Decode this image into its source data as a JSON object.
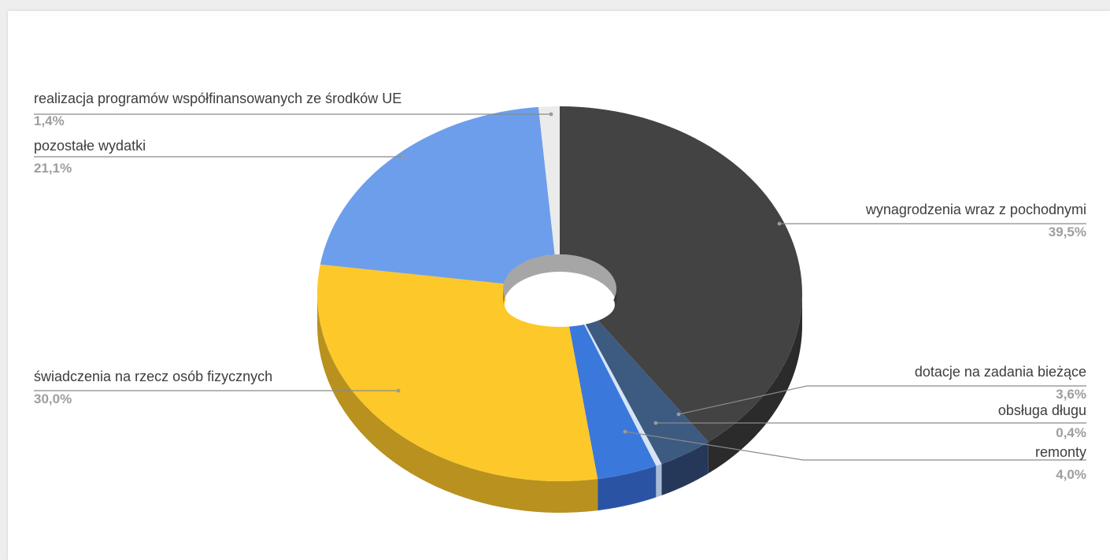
{
  "chart_data": {
    "type": "pie",
    "variant": "3d-donut",
    "slices": [
      {
        "label": "wynagrodzenia wraz z pochodnymi",
        "value": 39.5,
        "value_label": "39,5%",
        "color": "#434343",
        "side_color": "#2b2b2b"
      },
      {
        "label": "dotacje na zadania bieżące",
        "value": 3.6,
        "value_label": "3,6%",
        "color": "#3d5a80",
        "side_color": "#26385a"
      },
      {
        "label": "obsługa długu",
        "value": 0.4,
        "value_label": "0,4%",
        "color": "#d6e4f5",
        "side_color": "#a9bcd6"
      },
      {
        "label": "remonty",
        "value": 4.0,
        "value_label": "4,0%",
        "color": "#3b78db",
        "side_color": "#2a54a3"
      },
      {
        "label": "świadczenia na rzecz osób fizycznych",
        "value": 30.0,
        "value_label": "30,0%",
        "color": "#fdc829",
        "side_color": "#b8911f"
      },
      {
        "label": "pozostałe wydatki",
        "value": 21.1,
        "value_label": "21,1%",
        "color": "#6d9eeb",
        "side_color": "#4c72b0"
      },
      {
        "label": "realizacja programów współfinansowanych ze środków UE",
        "value": 1.4,
        "value_label": "1,4%",
        "color": "#ebebeb",
        "side_color": "#c4c4c4"
      }
    ]
  }
}
